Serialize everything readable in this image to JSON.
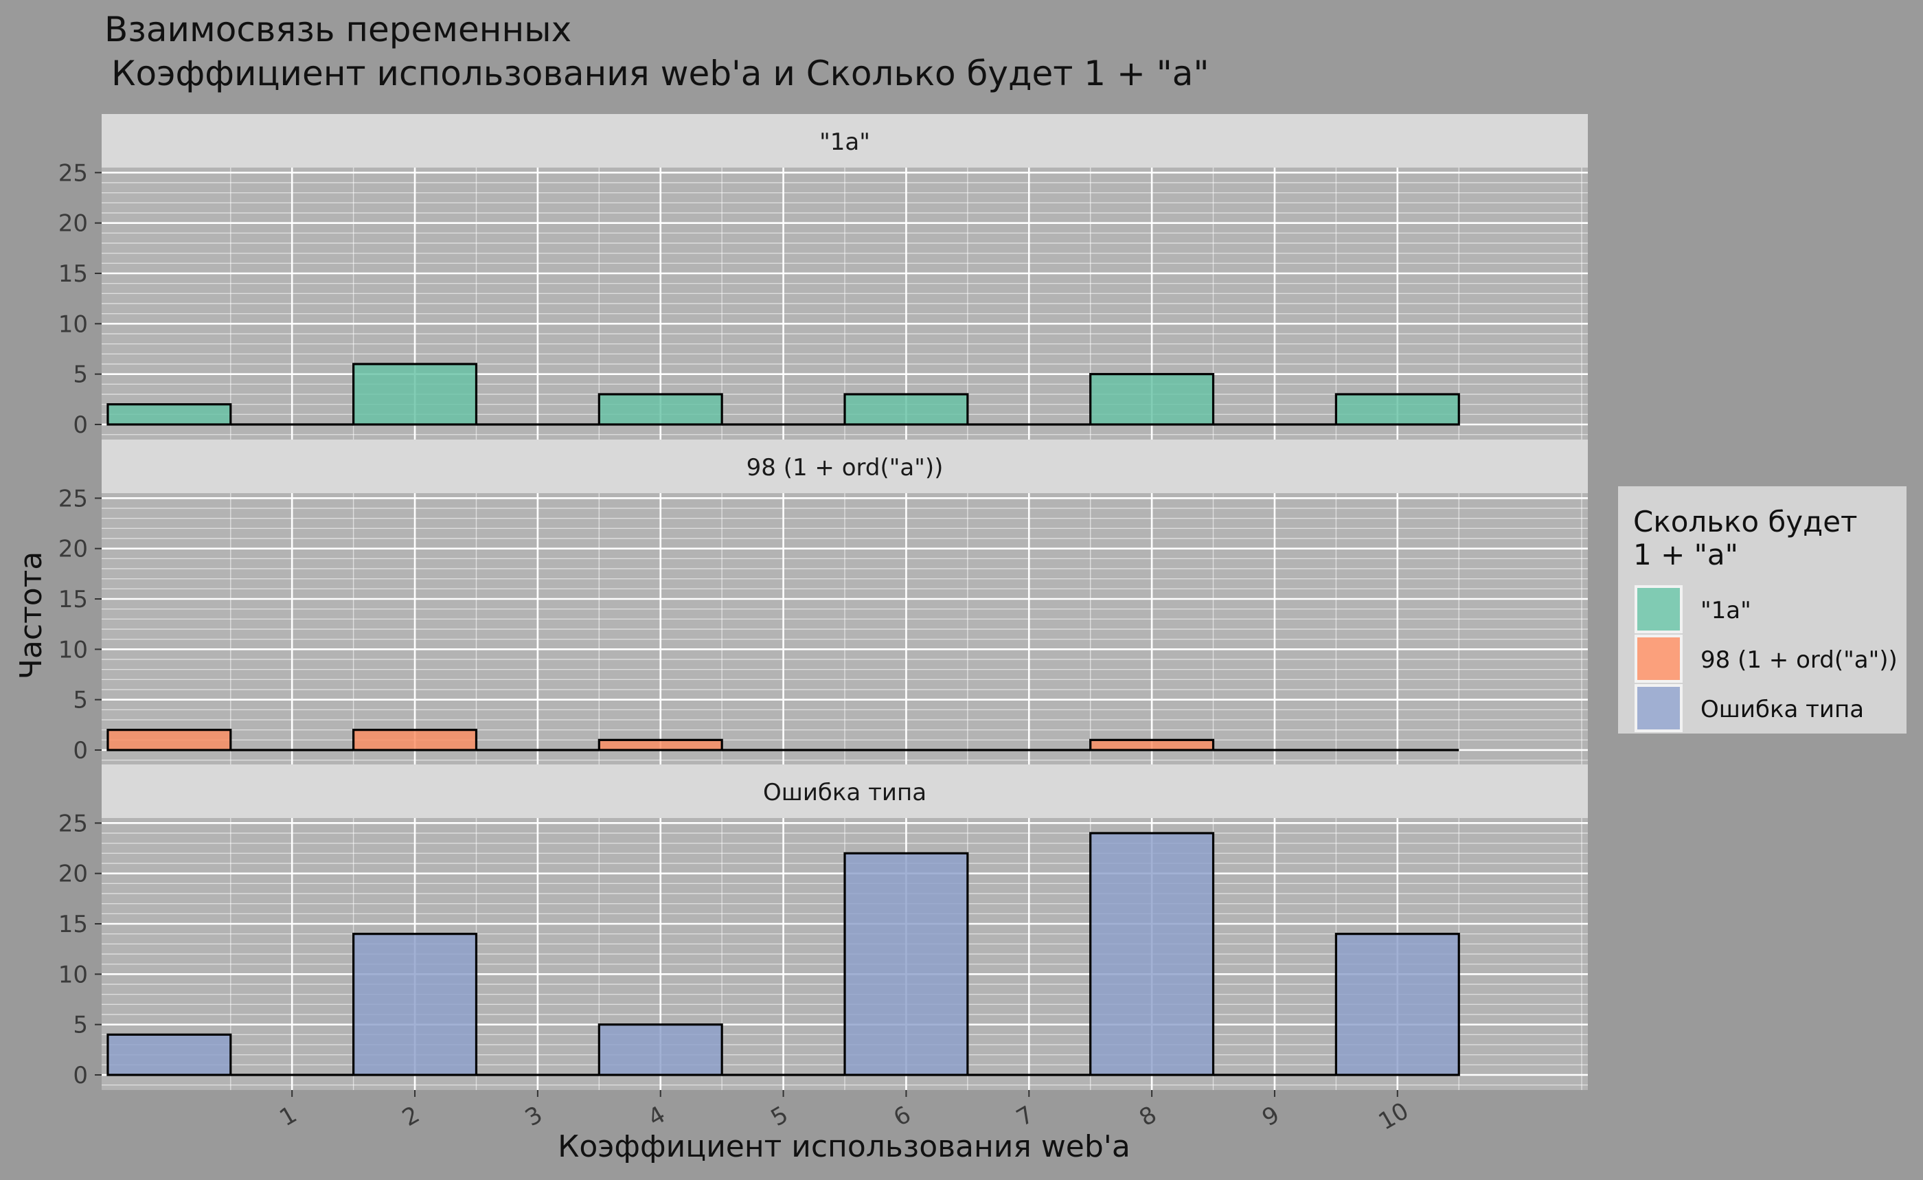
{
  "chart_data": {
    "type": "bar",
    "title": "Взаимосвязь переменных",
    "subtitle": "Коэффициент использования web'a и Сколько будет 1 + \"a\"",
    "xlabel": "Коэффициент использования web'a",
    "ylabel": "Частота",
    "x_ticks": [
      "1",
      "2",
      "3",
      "4",
      "5",
      "6",
      "7",
      "8",
      "9",
      "10"
    ],
    "xlim": [
      -0.55,
      11.55
    ],
    "ylim": [
      -1.5,
      25.5
    ],
    "y_ticks": [
      0,
      5,
      10,
      15,
      20,
      25
    ],
    "y_tick_labels": [
      "0",
      "5",
      "10",
      "15",
      "20",
      "25"
    ],
    "bin_width": 1,
    "bin_centers": [
      0,
      1,
      2,
      3,
      4,
      5,
      6,
      7,
      8,
      9,
      10
    ],
    "grid": true,
    "legend": {
      "title_line1": "Сколько будет",
      "title_line2": "1 + \"a\"",
      "position": "right"
    },
    "facets": [
      {
        "name": "\"1a\"",
        "color": "#66c2a5",
        "values": [
          2,
          0,
          6,
          0,
          3,
          0,
          3,
          0,
          5,
          0,
          3
        ]
      },
      {
        "name": "98 (1 + ord(\"a\"))",
        "color": "#fc8d62",
        "values": [
          2,
          0,
          2,
          0,
          1,
          0,
          0,
          0,
          1,
          0,
          0
        ]
      },
      {
        "name": "Ошибка типа",
        "color": "#8da0cb",
        "values": [
          4,
          0,
          14,
          0,
          5,
          0,
          22,
          0,
          24,
          0,
          14
        ]
      }
    ]
  },
  "colors": {
    "background": "#9a9a9a",
    "panel": "#b3b3b3",
    "strip": "#d9d9d9",
    "legend_box": "#d3d3d3",
    "grid": "#ffffff"
  }
}
